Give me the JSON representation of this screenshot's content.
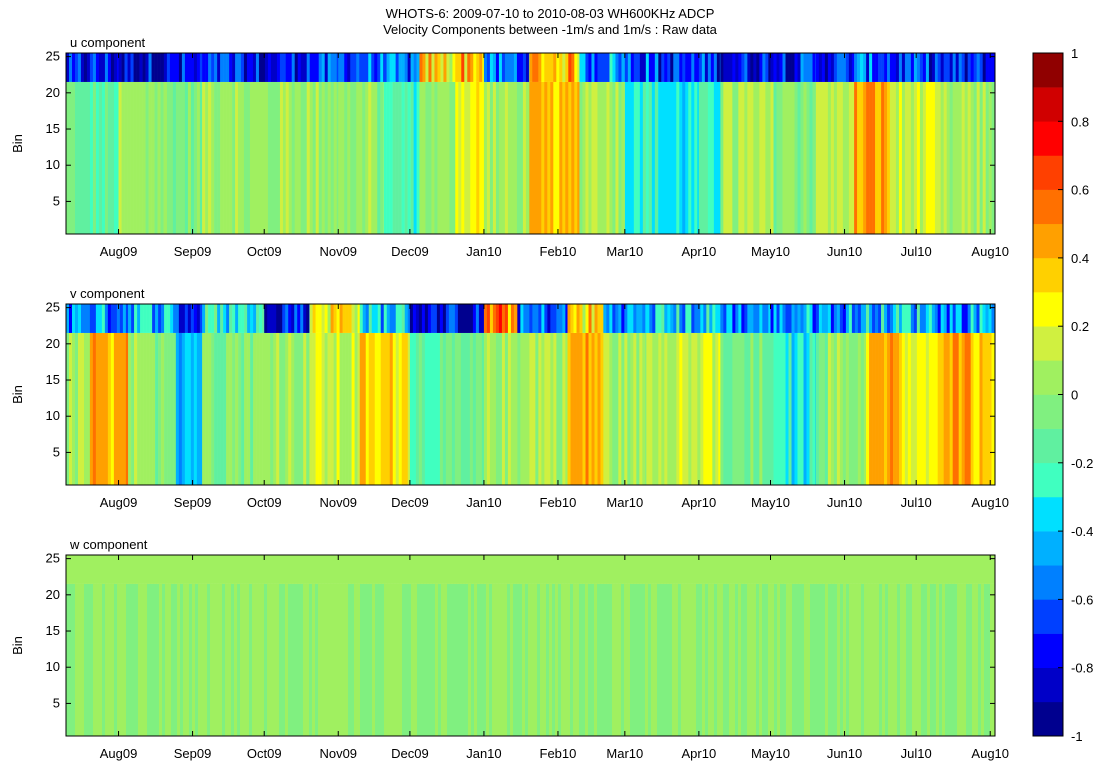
{
  "chart_data": {
    "type": "heatmap",
    "title": "WHOTS-6:  2009-07-10 to 2010-08-03 WH600KHz ADCP",
    "subtitle": "Velocity Components between -1m/s and 1m/s : Raw data",
    "ylabel": "Bin",
    "ylim": [
      1,
      25
    ],
    "y_ticks": [
      5,
      10,
      15,
      20,
      25
    ],
    "x_range": [
      "2009-07-10",
      "2010-08-03"
    ],
    "x_ticks": [
      {
        "label": "Aug09",
        "date": "2009-08-01"
      },
      {
        "label": "Sep09",
        "date": "2009-09-01"
      },
      {
        "label": "Oct09",
        "date": "2009-10-01"
      },
      {
        "label": "Nov09",
        "date": "2009-11-01"
      },
      {
        "label": "Dec09",
        "date": "2009-12-01"
      },
      {
        "label": "Jan10",
        "date": "2010-01-01"
      },
      {
        "label": "Feb10",
        "date": "2010-02-01"
      },
      {
        "label": "Mar10",
        "date": "2010-03-01"
      },
      {
        "label": "Apr10",
        "date": "2010-04-01"
      },
      {
        "label": "May10",
        "date": "2010-05-01"
      },
      {
        "label": "Jun10",
        "date": "2010-06-01"
      },
      {
        "label": "Jul10",
        "date": "2010-07-01"
      },
      {
        "label": "Aug10",
        "date": "2010-08-01"
      }
    ],
    "colorbar": {
      "range": [
        -1,
        1
      ],
      "step": 0.1,
      "tick_labels": [
        "1",
        "0.8",
        "0.6",
        "0.4",
        "0.2",
        "0",
        "-0.2",
        "-0.4",
        "-0.6",
        "-0.8",
        "-1"
      ],
      "colors": [
        "#00008f",
        "#0000c8",
        "#0000ff",
        "#0040ff",
        "#0080ff",
        "#00b0ff",
        "#00e0ff",
        "#40ffc0",
        "#60f0a0",
        "#80f080",
        "#a0f060",
        "#d0f040",
        "#ffff00",
        "#ffd000",
        "#ffa000",
        "#ff7000",
        "#ff4000",
        "#ff0000",
        "#d00000",
        "#900000"
      ]
    },
    "panels": [
      {
        "label": "u component",
        "surface_bins": [
          22,
          25
        ],
        "segments": [
          {
            "start": "2009-07-10",
            "end": "2009-07-15",
            "value": -0.12,
            "surface": -0.8
          },
          {
            "start": "2009-07-15",
            "end": "2009-08-01",
            "value": -0.18,
            "surface": -0.75
          },
          {
            "start": "2009-08-01",
            "end": "2009-08-20",
            "value": 0.02,
            "surface": -0.8
          },
          {
            "start": "2009-08-20",
            "end": "2009-09-05",
            "value": -0.05,
            "surface": -0.8
          },
          {
            "start": "2009-09-05",
            "end": "2009-09-20",
            "value": 0.08,
            "surface": -0.75
          },
          {
            "start": "2009-09-20",
            "end": "2009-10-10",
            "value": 0.0,
            "surface": -0.8
          },
          {
            "start": "2009-10-10",
            "end": "2009-11-01",
            "value": 0.05,
            "surface": -0.7
          },
          {
            "start": "2009-11-01",
            "end": "2009-11-20",
            "value": 0.0,
            "surface": -0.6
          },
          {
            "start": "2009-11-20",
            "end": "2009-12-05",
            "value": -0.22,
            "surface": -0.6
          },
          {
            "start": "2009-12-05",
            "end": "2009-12-20",
            "value": 0.0,
            "surface": 0.3
          },
          {
            "start": "2009-12-20",
            "end": "2010-01-01",
            "value": 0.25,
            "surface": 0.4
          },
          {
            "start": "2010-01-01",
            "end": "2010-01-20",
            "value": 0.05,
            "surface": -0.6
          },
          {
            "start": "2010-01-20",
            "end": "2010-02-10",
            "value": 0.35,
            "surface": 0.4
          },
          {
            "start": "2010-02-10",
            "end": "2010-03-01",
            "value": 0.1,
            "surface": -0.5
          },
          {
            "start": "2010-03-01",
            "end": "2010-03-15",
            "value": -0.25,
            "surface": -0.6
          },
          {
            "start": "2010-03-15",
            "end": "2010-04-01",
            "value": -0.35,
            "surface": -0.7
          },
          {
            "start": "2010-04-01",
            "end": "2010-04-10",
            "value": -0.25,
            "surface": -0.7
          },
          {
            "start": "2010-04-10",
            "end": "2010-05-01",
            "value": 0.05,
            "surface": -0.75
          },
          {
            "start": "2010-05-01",
            "end": "2010-05-20",
            "value": 0.0,
            "surface": -0.7
          },
          {
            "start": "2010-05-20",
            "end": "2010-06-05",
            "value": 0.1,
            "surface": -0.7
          },
          {
            "start": "2010-06-05",
            "end": "2010-06-20",
            "value": 0.45,
            "surface": -0.6
          },
          {
            "start": "2010-06-20",
            "end": "2010-07-10",
            "value": 0.12,
            "surface": -0.7
          },
          {
            "start": "2010-07-10",
            "end": "2010-08-03",
            "value": 0.05,
            "surface": -0.75
          }
        ]
      },
      {
        "label": "v component",
        "surface_bins": [
          22,
          25
        ],
        "segments": [
          {
            "start": "2009-07-10",
            "end": "2009-07-20",
            "value": 0.05,
            "surface": -0.5
          },
          {
            "start": "2009-07-20",
            "end": "2009-08-05",
            "value": 0.4,
            "surface": -0.5
          },
          {
            "start": "2009-08-05",
            "end": "2009-08-25",
            "value": 0.0,
            "surface": -0.4
          },
          {
            "start": "2009-08-25",
            "end": "2009-09-05",
            "value": -0.4,
            "surface": -0.7
          },
          {
            "start": "2009-09-05",
            "end": "2009-10-01",
            "value": 0.0,
            "surface": -0.3
          },
          {
            "start": "2009-10-01",
            "end": "2009-10-20",
            "value": 0.05,
            "surface": -0.7
          },
          {
            "start": "2009-10-20",
            "end": "2009-11-10",
            "value": 0.12,
            "surface": 0.3
          },
          {
            "start": "2009-11-10",
            "end": "2009-12-01",
            "value": 0.3,
            "surface": -0.4
          },
          {
            "start": "2009-12-01",
            "end": "2010-01-01",
            "value": -0.15,
            "surface": -0.8
          },
          {
            "start": "2010-01-01",
            "end": "2010-01-15",
            "value": 0.05,
            "surface": 0.5
          },
          {
            "start": "2010-01-15",
            "end": "2010-02-05",
            "value": 0.08,
            "surface": -0.6
          },
          {
            "start": "2010-02-05",
            "end": "2010-02-20",
            "value": 0.4,
            "surface": 0.3
          },
          {
            "start": "2010-02-20",
            "end": "2010-03-10",
            "value": 0.05,
            "surface": -0.5
          },
          {
            "start": "2010-03-10",
            "end": "2010-04-10",
            "value": 0.15,
            "surface": -0.4
          },
          {
            "start": "2010-04-10",
            "end": "2010-05-01",
            "value": -0.1,
            "surface": -0.5
          },
          {
            "start": "2010-05-01",
            "end": "2010-05-20",
            "value": -0.3,
            "surface": -0.5
          },
          {
            "start": "2010-05-20",
            "end": "2010-06-10",
            "value": 0.0,
            "surface": -0.5
          },
          {
            "start": "2010-06-10",
            "end": "2010-06-25",
            "value": 0.4,
            "surface": -0.4
          },
          {
            "start": "2010-06-25",
            "end": "2010-07-10",
            "value": 0.2,
            "surface": -0.4
          },
          {
            "start": "2010-07-10",
            "end": "2010-07-25",
            "value": 0.5,
            "surface": -0.5
          },
          {
            "start": "2010-07-25",
            "end": "2010-08-03",
            "value": 0.35,
            "surface": -0.4
          }
        ]
      },
      {
        "label": "w component",
        "surface_bins": [
          22,
          25
        ],
        "segments": [
          {
            "start": "2009-07-10",
            "end": "2010-08-03",
            "value": 0.0,
            "surface": 0.05
          }
        ]
      }
    ]
  }
}
